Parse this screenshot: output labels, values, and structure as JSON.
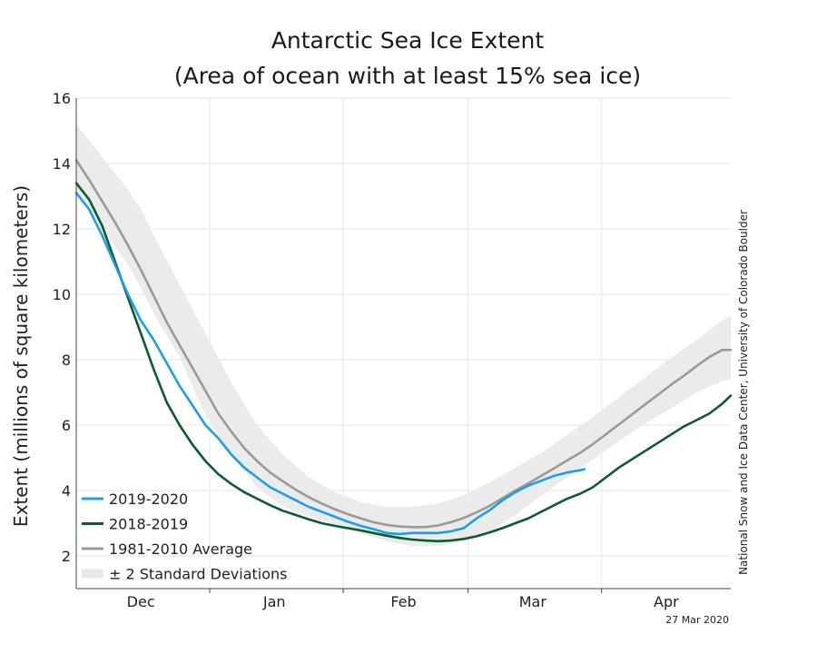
{
  "chart_data": {
    "type": "line",
    "title": "Antarctic Sea Ice Extent",
    "subtitle": "(Area of ocean with at least 15% sea ice)",
    "ylabel": "Extent (millions of square kilometers)",
    "xlabel": "",
    "ylim": [
      1.0,
      16.0
    ],
    "yticks": [
      2,
      4,
      6,
      8,
      10,
      12,
      14,
      16
    ],
    "xlim": [
      0,
      152
    ],
    "month_labels": [
      {
        "label": "Dec",
        "x": 15
      },
      {
        "label": "Jan",
        "x": 46
      },
      {
        "label": "Feb",
        "x": 76
      },
      {
        "label": "Mar",
        "x": 106
      },
      {
        "label": "Apr",
        "x": 137
      }
    ],
    "month_boundaries": [
      31,
      62,
      91,
      122
    ],
    "grid": true,
    "legend_position": "bottom-left",
    "series": [
      {
        "name": "2019-2020",
        "color": "#1f9ee8",
        "x": [
          0,
          3,
          6,
          9,
          12,
          15,
          18,
          21,
          24,
          27,
          30,
          33,
          36,
          39,
          42,
          45,
          48,
          51,
          54,
          57,
          60,
          63,
          66,
          69,
          72,
          75,
          78,
          81,
          84,
          87,
          90,
          93,
          96,
          99,
          102,
          105,
          108,
          111,
          114,
          117,
          118
        ],
        "values": [
          13.1,
          12.6,
          11.8,
          10.9,
          10.0,
          9.2,
          8.6,
          7.9,
          7.2,
          6.6,
          6.0,
          5.6,
          5.1,
          4.7,
          4.4,
          4.1,
          3.9,
          3.7,
          3.5,
          3.35,
          3.2,
          3.05,
          2.92,
          2.82,
          2.7,
          2.67,
          2.7,
          2.7,
          2.7,
          2.75,
          2.85,
          3.15,
          3.4,
          3.7,
          3.95,
          4.15,
          4.3,
          4.45,
          4.55,
          4.62,
          4.65
        ]
      },
      {
        "name": "2018-2019",
        "color": "#0b5c2b",
        "x": [
          0,
          3,
          6,
          9,
          12,
          15,
          18,
          21,
          24,
          27,
          30,
          33,
          36,
          39,
          42,
          45,
          48,
          51,
          54,
          57,
          60,
          63,
          66,
          69,
          72,
          75,
          78,
          81,
          84,
          87,
          90,
          93,
          96,
          99,
          102,
          105,
          108,
          111,
          114,
          117,
          120,
          123,
          126,
          129,
          132,
          135,
          138,
          141,
          144,
          147,
          150,
          152
        ],
        "values": [
          13.4,
          12.9,
          12.1,
          11.0,
          9.9,
          8.8,
          7.7,
          6.7,
          6.0,
          5.4,
          4.9,
          4.5,
          4.2,
          3.95,
          3.75,
          3.55,
          3.38,
          3.25,
          3.12,
          3.0,
          2.92,
          2.85,
          2.78,
          2.7,
          2.62,
          2.55,
          2.5,
          2.47,
          2.45,
          2.47,
          2.52,
          2.6,
          2.72,
          2.85,
          3.0,
          3.15,
          3.35,
          3.55,
          3.75,
          3.9,
          4.1,
          4.4,
          4.7,
          4.95,
          5.2,
          5.45,
          5.7,
          5.95,
          6.15,
          6.35,
          6.65,
          6.9
        ]
      },
      {
        "name": "1981-2010 Average",
        "color": "#9a9a9a",
        "x": [
          0,
          3,
          6,
          9,
          12,
          15,
          18,
          21,
          24,
          27,
          30,
          33,
          36,
          39,
          42,
          45,
          48,
          51,
          54,
          57,
          60,
          63,
          66,
          69,
          72,
          75,
          78,
          81,
          84,
          87,
          90,
          93,
          96,
          99,
          102,
          105,
          108,
          111,
          114,
          117,
          120,
          123,
          126,
          129,
          132,
          135,
          138,
          141,
          144,
          147,
          150,
          152
        ],
        "values": [
          14.1,
          13.5,
          12.85,
          12.2,
          11.5,
          10.75,
          9.95,
          9.15,
          8.45,
          7.75,
          7.05,
          6.35,
          5.8,
          5.3,
          4.9,
          4.55,
          4.28,
          4.02,
          3.8,
          3.6,
          3.43,
          3.28,
          3.15,
          3.03,
          2.95,
          2.9,
          2.88,
          2.88,
          2.93,
          3.03,
          3.16,
          3.33,
          3.53,
          3.77,
          4.0,
          4.22,
          4.45,
          4.68,
          4.92,
          5.15,
          5.42,
          5.72,
          6.02,
          6.32,
          6.62,
          6.92,
          7.22,
          7.5,
          7.8,
          8.08,
          8.3,
          8.3
        ]
      }
    ],
    "band": {
      "name": "± 2 Standard Deviations",
      "color": "#ebebeb",
      "x": [
        0,
        6,
        12,
        15,
        18,
        24,
        30,
        36,
        42,
        48,
        54,
        60,
        66,
        72,
        78,
        84,
        90,
        96,
        102,
        108,
        114,
        120,
        126,
        132,
        138,
        144,
        150,
        152
      ],
      "upper": [
        15.2,
        14.2,
        13.2,
        12.6,
        11.8,
        10.3,
        8.8,
        7.3,
        6.0,
        5.1,
        4.4,
        3.95,
        3.65,
        3.5,
        3.5,
        3.6,
        3.85,
        4.25,
        4.7,
        5.15,
        5.7,
        6.25,
        6.85,
        7.45,
        8.05,
        8.6,
        9.2,
        9.35
      ],
      "lower": [
        13.1,
        12.0,
        10.9,
        10.2,
        9.4,
        8.1,
        6.3,
        5.1,
        4.1,
        3.5,
        3.2,
        2.95,
        2.7,
        2.45,
        2.3,
        2.3,
        2.45,
        2.75,
        3.25,
        3.85,
        4.4,
        4.95,
        5.5,
        6.05,
        6.5,
        7.0,
        7.35,
        7.4
      ]
    }
  },
  "credit": "National Snow and Ice Data Center, University of Colorado Boulder",
  "date_stamp": "27 Mar 2020"
}
